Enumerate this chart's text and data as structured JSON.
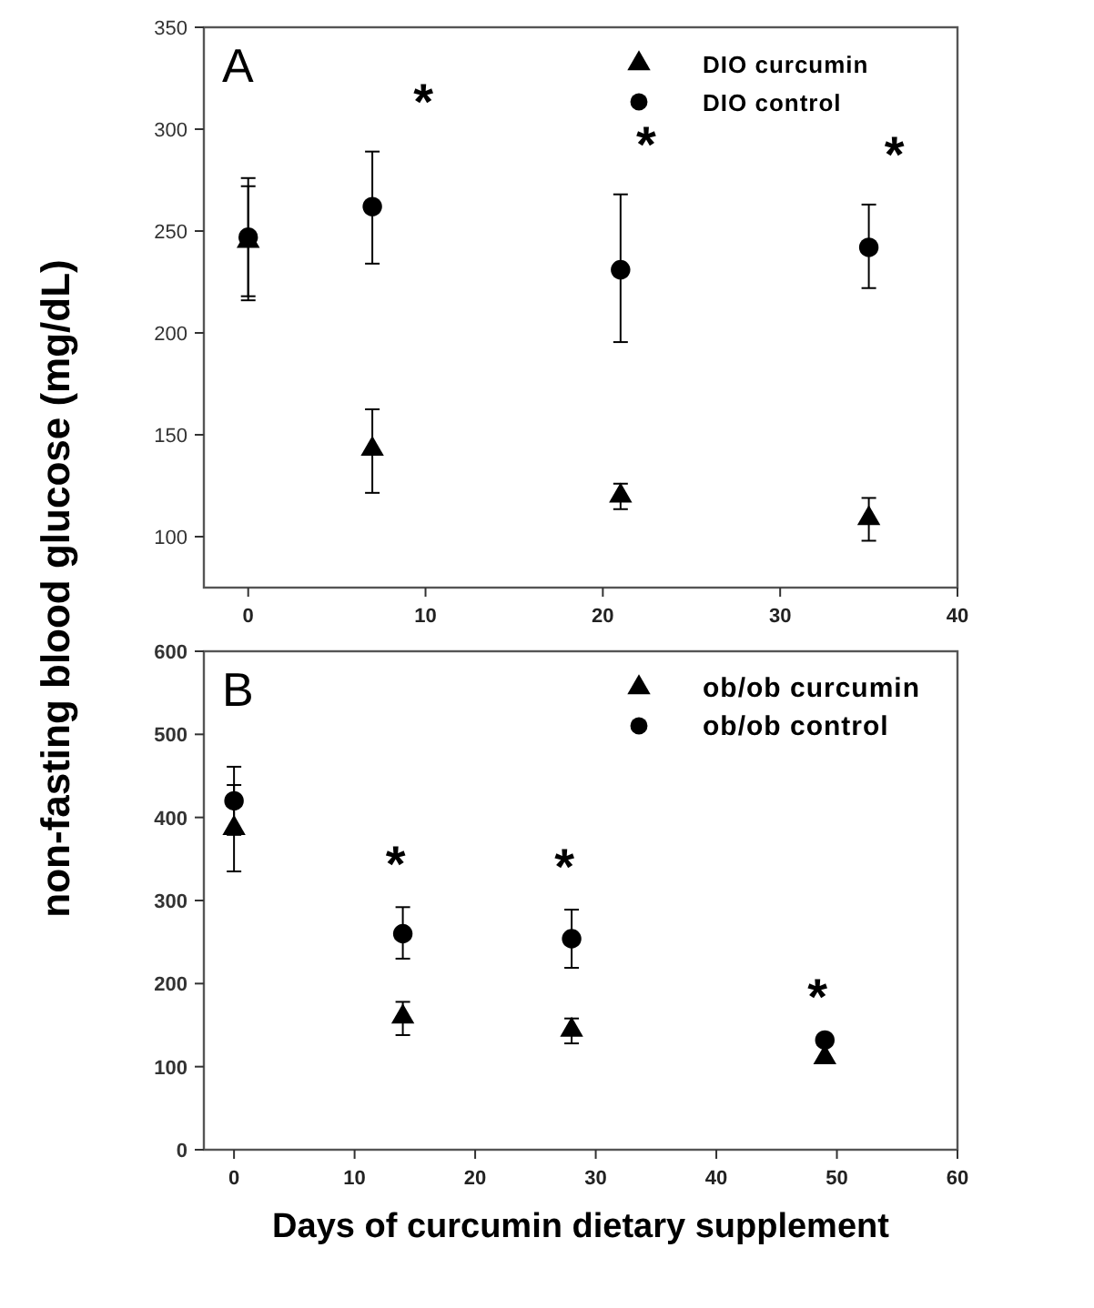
{
  "chart_data": [
    {
      "type": "scatter",
      "title": "A",
      "ylabel": "non-fasting blood glucose (mg/dL)",
      "x": [
        0,
        7,
        21,
        35
      ],
      "xlim": [
        -2.5,
        40
      ],
      "xticks": [
        0,
        10,
        20,
        30,
        40
      ],
      "ylim": [
        75,
        350
      ],
      "yticks": [
        100,
        150,
        200,
        250,
        300,
        350
      ],
      "legend": "top right",
      "grid": false,
      "series": [
        {
          "name": "DIO curcumin",
          "color": "#000000",
          "marker": "triangle",
          "values": [
            245,
            143,
            120,
            109
          ],
          "errors": [
            [
              218,
              272
            ],
            [
              121.5,
              162.5
            ],
            [
              113.5,
              126
            ],
            [
              98,
              119
            ]
          ]
        },
        {
          "name": "DIO control",
          "color": "#000000",
          "marker": "circle",
          "values": [
            247,
            262,
            231,
            242
          ],
          "errors": [
            [
              216,
              276
            ],
            [
              234,
              289
            ],
            [
              195.5,
              268
            ],
            [
              222,
              263
            ]
          ]
        }
      ],
      "annotations": [
        "*",
        "*",
        "*"
      ]
    },
    {
      "type": "scatter",
      "title": "B",
      "xlabel": "Days of curcumin dietary supplement",
      "x": [
        0,
        14,
        28,
        49
      ],
      "xlim": [
        -2.5,
        60
      ],
      "xticks": [
        0,
        10,
        20,
        30,
        40,
        50,
        60
      ],
      "ylim": [
        0,
        600
      ],
      "yticks": [
        0,
        100,
        200,
        300,
        400,
        500,
        600
      ],
      "legend": "top right",
      "grid": false,
      "series": [
        {
          "name": "ob/ob curcumin",
          "color": "#000000",
          "marker": "triangle",
          "values": [
            387,
            160,
            144,
            111
          ],
          "errors": [
            [
              335,
              439
            ],
            [
              138,
              178
            ],
            [
              128,
              158
            ],
            null
          ]
        },
        {
          "name": "ob/ob control",
          "color": "#000000",
          "marker": "circle",
          "values": [
            420,
            260,
            254,
            132
          ],
          "errors": [
            [
              379,
              461
            ],
            [
              230,
              292
            ],
            [
              219,
              289
            ],
            null
          ]
        }
      ],
      "annotations": [
        "*",
        "*",
        "*"
      ]
    }
  ]
}
